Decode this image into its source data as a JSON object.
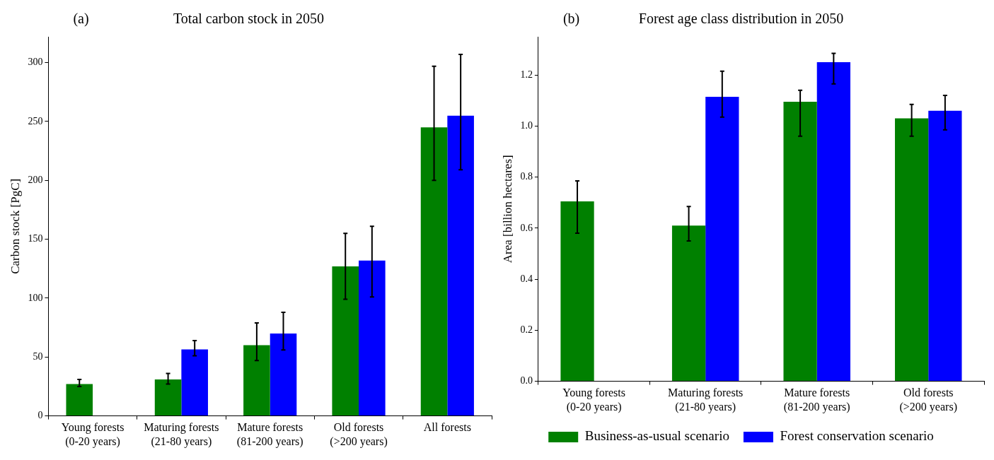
{
  "chart_data": [
    {
      "type": "bar",
      "title": "Total carbon stock in 2050",
      "ylabel": "Carbon stock [PgC]",
      "annotations": [
        "(a)"
      ],
      "categories": [
        "Young forests\n(0-20 years)",
        "Maturing forests\n(21-80 years)",
        "Mature forests\n(81-200 years)",
        "Old forests\n(>200 years)",
        "All forests"
      ],
      "series": [
        {
          "color": "#008000",
          "values": [
            27,
            31,
            60,
            127,
            245
          ],
          "errors": [
            [
              25,
              31
            ],
            [
              27,
              36
            ],
            [
              47,
              79
            ],
            [
              99,
              155
            ],
            [
              200,
              297
            ]
          ]
        },
        {
          "color": "#0000ff",
          "values": [
            0,
            56.5,
            70,
            132,
            255
          ],
          "errors": [
            null,
            [
              51,
              64
            ],
            [
              56,
              88
            ],
            [
              101,
              161
            ],
            [
              209,
              307
            ]
          ]
        }
      ],
      "ylim": [
        0,
        322
      ],
      "yticks": [
        0,
        50,
        100,
        150,
        200,
        250,
        300
      ],
      "grid": false,
      "legend": false
    },
    {
      "type": "bar",
      "title": "Forest age class distribution in 2050",
      "ylabel": "Area [billion hectares]",
      "annotations": [
        "(b)"
      ],
      "categories": [
        "Young forests\n(0-20 years)",
        "Maturing forests\n(21-80 years)",
        "Mature forests\n(81-200 years)",
        "Old forests\n(>200 years)"
      ],
      "series": [
        {
          "name": "Business-as-usual scenario",
          "color": "#008000",
          "values": [
            0.705,
            0.61,
            1.095,
            1.03
          ],
          "errors": [
            [
              0.58,
              0.785
            ],
            [
              0.55,
              0.685
            ],
            [
              0.96,
              1.14
            ],
            [
              0.96,
              1.085
            ]
          ]
        },
        {
          "name": "Forest conservation scenario",
          "color": "#0000ff",
          "values": [
            0,
            1.115,
            1.25,
            1.06
          ],
          "errors": [
            null,
            [
              1.035,
              1.215
            ],
            [
              1.165,
              1.285
            ],
            [
              0.985,
              1.12
            ]
          ]
        }
      ],
      "ylim": [
        0,
        1.35
      ],
      "yticks": [
        {
          "value": 0,
          "label": "0.0"
        },
        0.2,
        0.4,
        0.6,
        0.8,
        {
          "value": 1,
          "label": "1.0"
        },
        1.2
      ],
      "grid": false,
      "legend": "bottom"
    }
  ]
}
